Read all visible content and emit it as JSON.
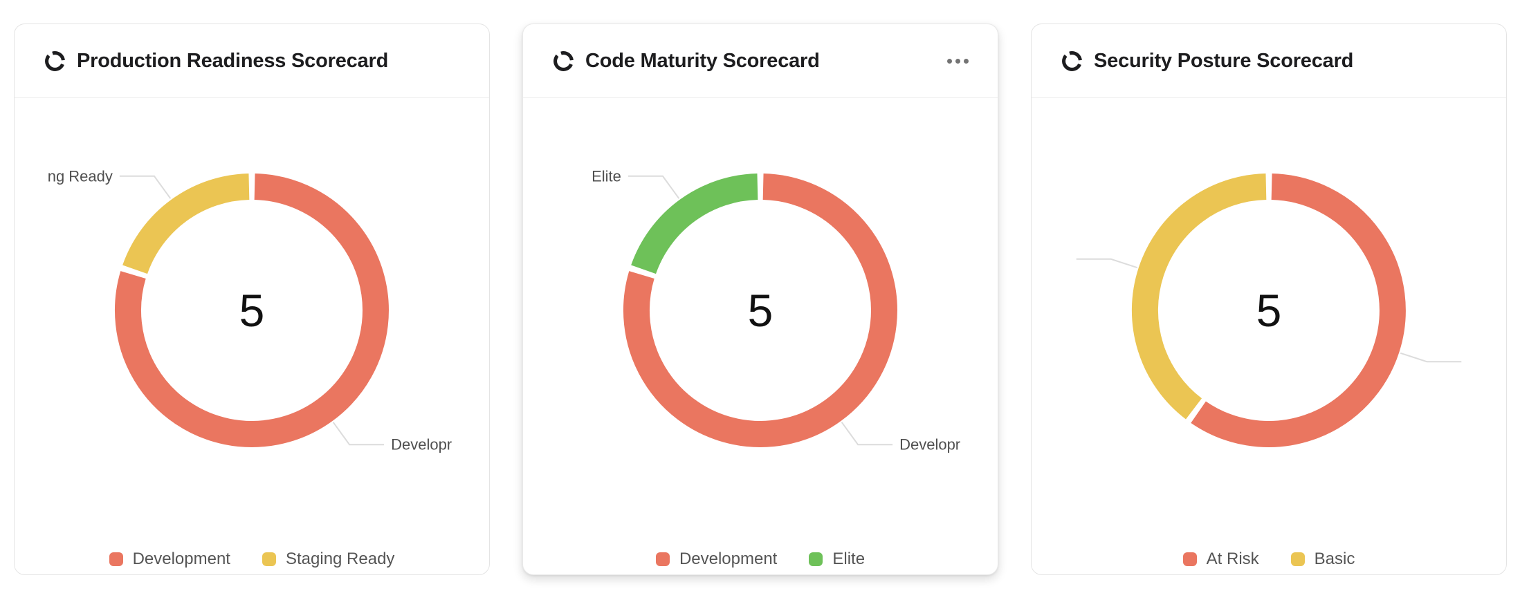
{
  "page": {
    "background": "#ffffff"
  },
  "colors": {
    "red": "#EA7660",
    "yellow": "#EBC553",
    "green": "#6EC159",
    "leader_line": "#DCDCDC",
    "callout_text": "#4F4F4F",
    "legend_text": "#555555",
    "title_text": "#1d1d1f",
    "center_value_text": "#111111",
    "card_border": "#e4e4e4",
    "menu_dots": "#737373"
  },
  "cards": [
    {
      "title": "Production Readiness Scorecard",
      "icon": "donut-chart-icon",
      "has_menu": false,
      "center_value": "5",
      "legend": [
        {
          "label": "Development",
          "color": "#EA7660"
        },
        {
          "label": "Staging Ready",
          "color": "#EBC553"
        }
      ]
    },
    {
      "title": "Code Maturity Scorecard",
      "icon": "donut-chart-icon",
      "has_menu": true,
      "menu_label": "more-options",
      "center_value": "5",
      "legend": [
        {
          "label": "Development",
          "color": "#EA7660"
        },
        {
          "label": "Elite",
          "color": "#6EC159"
        }
      ]
    },
    {
      "title": "Security Posture Scorecard",
      "icon": "donut-chart-icon",
      "has_menu": false,
      "center_value": "5",
      "legend": [
        {
          "label": "At Risk",
          "color": "#EA7660"
        },
        {
          "label": "Basic",
          "color": "#EBC553"
        }
      ]
    }
  ],
  "chart_data": [
    {
      "type": "pie",
      "subtype": "donut",
      "title": "Production Readiness Scorecard",
      "center_label": "5",
      "total": 5,
      "legend_position": "bottom",
      "segments": [
        {
          "label": "Development",
          "value": 4,
          "color": "#EA7660",
          "callout_visible_text": "Developr"
        },
        {
          "label": "Staging Ready",
          "value": 1,
          "color": "#EBC553",
          "callout_visible_text": "ng Ready"
        }
      ]
    },
    {
      "type": "pie",
      "subtype": "donut",
      "title": "Code Maturity Scorecard",
      "center_label": "5",
      "total": 5,
      "legend_position": "bottom",
      "segments": [
        {
          "label": "Development",
          "value": 4,
          "color": "#EA7660",
          "callout_visible_text": "Developr"
        },
        {
          "label": "Elite",
          "value": 1,
          "color": "#6EC159",
          "callout_visible_text": "Elite"
        }
      ]
    },
    {
      "type": "pie",
      "subtype": "donut",
      "title": "Security Posture Scorecard",
      "center_label": "5",
      "total": 5,
      "legend_position": "bottom",
      "segments": [
        {
          "label": "At Risk",
          "value": 3,
          "color": "#EA7660",
          "callout_visible_text": ""
        },
        {
          "label": "Basic",
          "value": 2,
          "color": "#EBC553",
          "callout_visible_text": ""
        }
      ]
    }
  ]
}
